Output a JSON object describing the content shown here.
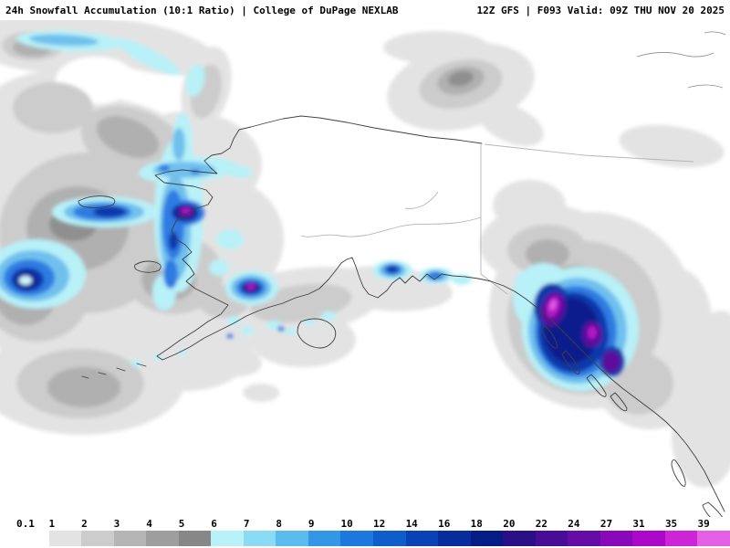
{
  "header": {
    "left": "24h Snowfall Accumulation (10:1 Ratio) | College of DuPage NEXLAB",
    "right": "12Z GFS | F093 Valid: 09Z THU NOV 20 2025"
  },
  "colorbar": {
    "cells": [
      {
        "label": "0.1",
        "color": "#ffffff"
      },
      {
        "label": "1",
        "color": "#e3e3e3"
      },
      {
        "label": "2",
        "color": "#cccccc"
      },
      {
        "label": "3",
        "color": "#b5b5b5"
      },
      {
        "label": "4",
        "color": "#9e9e9e"
      },
      {
        "label": "5",
        "color": "#878787"
      },
      {
        "label": "6",
        "color": "#b8f1f7"
      },
      {
        "label": "7",
        "color": "#8adbf3"
      },
      {
        "label": "8",
        "color": "#5cbbee"
      },
      {
        "label": "9",
        "color": "#3397e6"
      },
      {
        "label": "10",
        "color": "#1c78dd"
      },
      {
        "label": "12",
        "color": "#0f5ccb"
      },
      {
        "label": "14",
        "color": "#0a41b5"
      },
      {
        "label": "16",
        "color": "#072c9e"
      },
      {
        "label": "18",
        "color": "#051b86"
      },
      {
        "label": "20",
        "color": "#2a0f86"
      },
      {
        "label": "22",
        "color": "#470d97"
      },
      {
        "label": "24",
        "color": "#640ba8"
      },
      {
        "label": "27",
        "color": "#8709b9"
      },
      {
        "label": "31",
        "color": "#aa07c9"
      },
      {
        "label": "35",
        "color": "#cc24d6"
      },
      {
        "label": "39",
        "color": "#e35fe3"
      }
    ]
  },
  "chart_data": {
    "type": "heatmap",
    "title": "24h Snowfall Accumulation (10:1 Ratio)",
    "source": "College of DuPage NEXLAB",
    "model": "12Z GFS",
    "forecast_hour": "F093",
    "valid": "09Z THU NOV 20 2025",
    "colorbar_tick_labels": [
      "0.1",
      "1",
      "2",
      "3",
      "4",
      "5",
      "6",
      "7",
      "8",
      "9",
      "10",
      "12",
      "14",
      "16",
      "18",
      "20",
      "22",
      "24",
      "27",
      "31",
      "35",
      "39"
    ],
    "colorbar_colors": [
      "#ffffff",
      "#e3e3e3",
      "#cccccc",
      "#b5b5b5",
      "#9e9e9e",
      "#878787",
      "#b8f1f7",
      "#8adbf3",
      "#5cbbee",
      "#3397e6",
      "#1c78dd",
      "#0f5ccb",
      "#0a41b5",
      "#072c9e",
      "#051b86",
      "#2a0f86",
      "#470d97",
      "#640ba8",
      "#8709b9",
      "#aa07c9",
      "#cc24d6",
      "#e35fe3"
    ],
    "legend_position": "bottom",
    "notable_maxima": [
      {
        "location": "southeast Alaska panhandle",
        "approx_max_in": 35
      },
      {
        "location": "Yukon delta / west-central Alaska",
        "approx_max_in": 27
      },
      {
        "location": "southwest Alaska Range coast",
        "approx_max_in": 31
      },
      {
        "location": "Bering Sea near left edge",
        "approx_max_in": 16
      },
      {
        "location": "Kenai / Prince William Sound coast",
        "approx_max_in": 14
      },
      {
        "location": "interior northeast (upper-right gray lobe)",
        "approx_max_in": 5
      }
    ]
  }
}
